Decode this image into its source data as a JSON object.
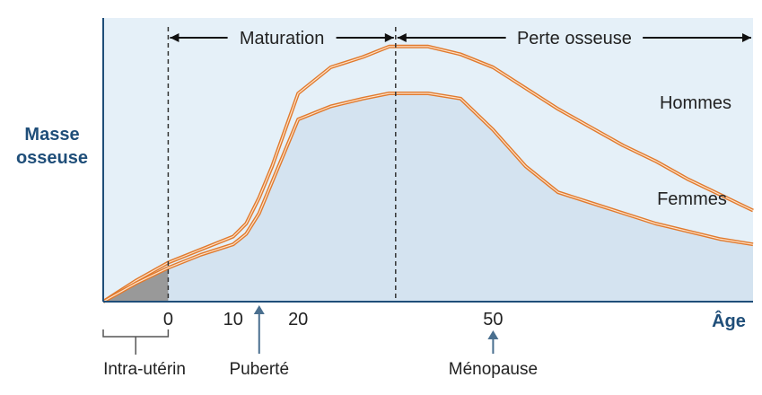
{
  "chart_data": {
    "type": "area",
    "ylabel": [
      "Masse",
      "osseuse"
    ],
    "xlabel": "Âge",
    "xticks": [
      0,
      10,
      20,
      50
    ],
    "series": [
      {
        "name": "Hommes",
        "color": "#e07a2e",
        "x": [
          -10,
          -5,
          0,
          5,
          10,
          12,
          14,
          16,
          18,
          20,
          25,
          30,
          34,
          40,
          45,
          50,
          55,
          60,
          65,
          70,
          75,
          80,
          85,
          90
        ],
        "y": [
          0.0,
          0.08,
          0.15,
          0.2,
          0.25,
          0.3,
          0.4,
          0.52,
          0.66,
          0.8,
          0.9,
          0.94,
          0.98,
          0.98,
          0.95,
          0.9,
          0.82,
          0.74,
          0.67,
          0.6,
          0.54,
          0.47,
          0.41,
          0.35
        ]
      },
      {
        "name": "Femmes",
        "color": "#e07a2e",
        "x": [
          -10,
          -5,
          0,
          5,
          10,
          12,
          14,
          16,
          18,
          20,
          25,
          30,
          34,
          40,
          45,
          50,
          55,
          60,
          65,
          70,
          75,
          80,
          85,
          90
        ],
        "y": [
          0.0,
          0.07,
          0.13,
          0.18,
          0.22,
          0.26,
          0.34,
          0.46,
          0.58,
          0.7,
          0.75,
          0.78,
          0.8,
          0.8,
          0.78,
          0.66,
          0.52,
          0.42,
          0.38,
          0.34,
          0.3,
          0.27,
          0.24,
          0.22
        ]
      }
    ],
    "phases": [
      {
        "label": "Maturation"
      },
      {
        "label": "Perte osseuse"
      }
    ],
    "markers": {
      "maturation_start_age": 0,
      "peak_age": 35
    },
    "annotations": [
      {
        "label": "Intra-utérin",
        "from_age": -10,
        "to_age": 0
      },
      {
        "label": "Puberté",
        "at_age": 14
      },
      {
        "label": "Ménopause",
        "at_age": 50
      }
    ],
    "colors": {
      "background_prenatal": "#e8f2f9",
      "background_main": "#e5f0f8",
      "fill_women": "#d4e3f0",
      "fill_prenatal": "#999999",
      "axis": "#1f4e79",
      "annotation_arrow": "#4a6f8f"
    }
  }
}
